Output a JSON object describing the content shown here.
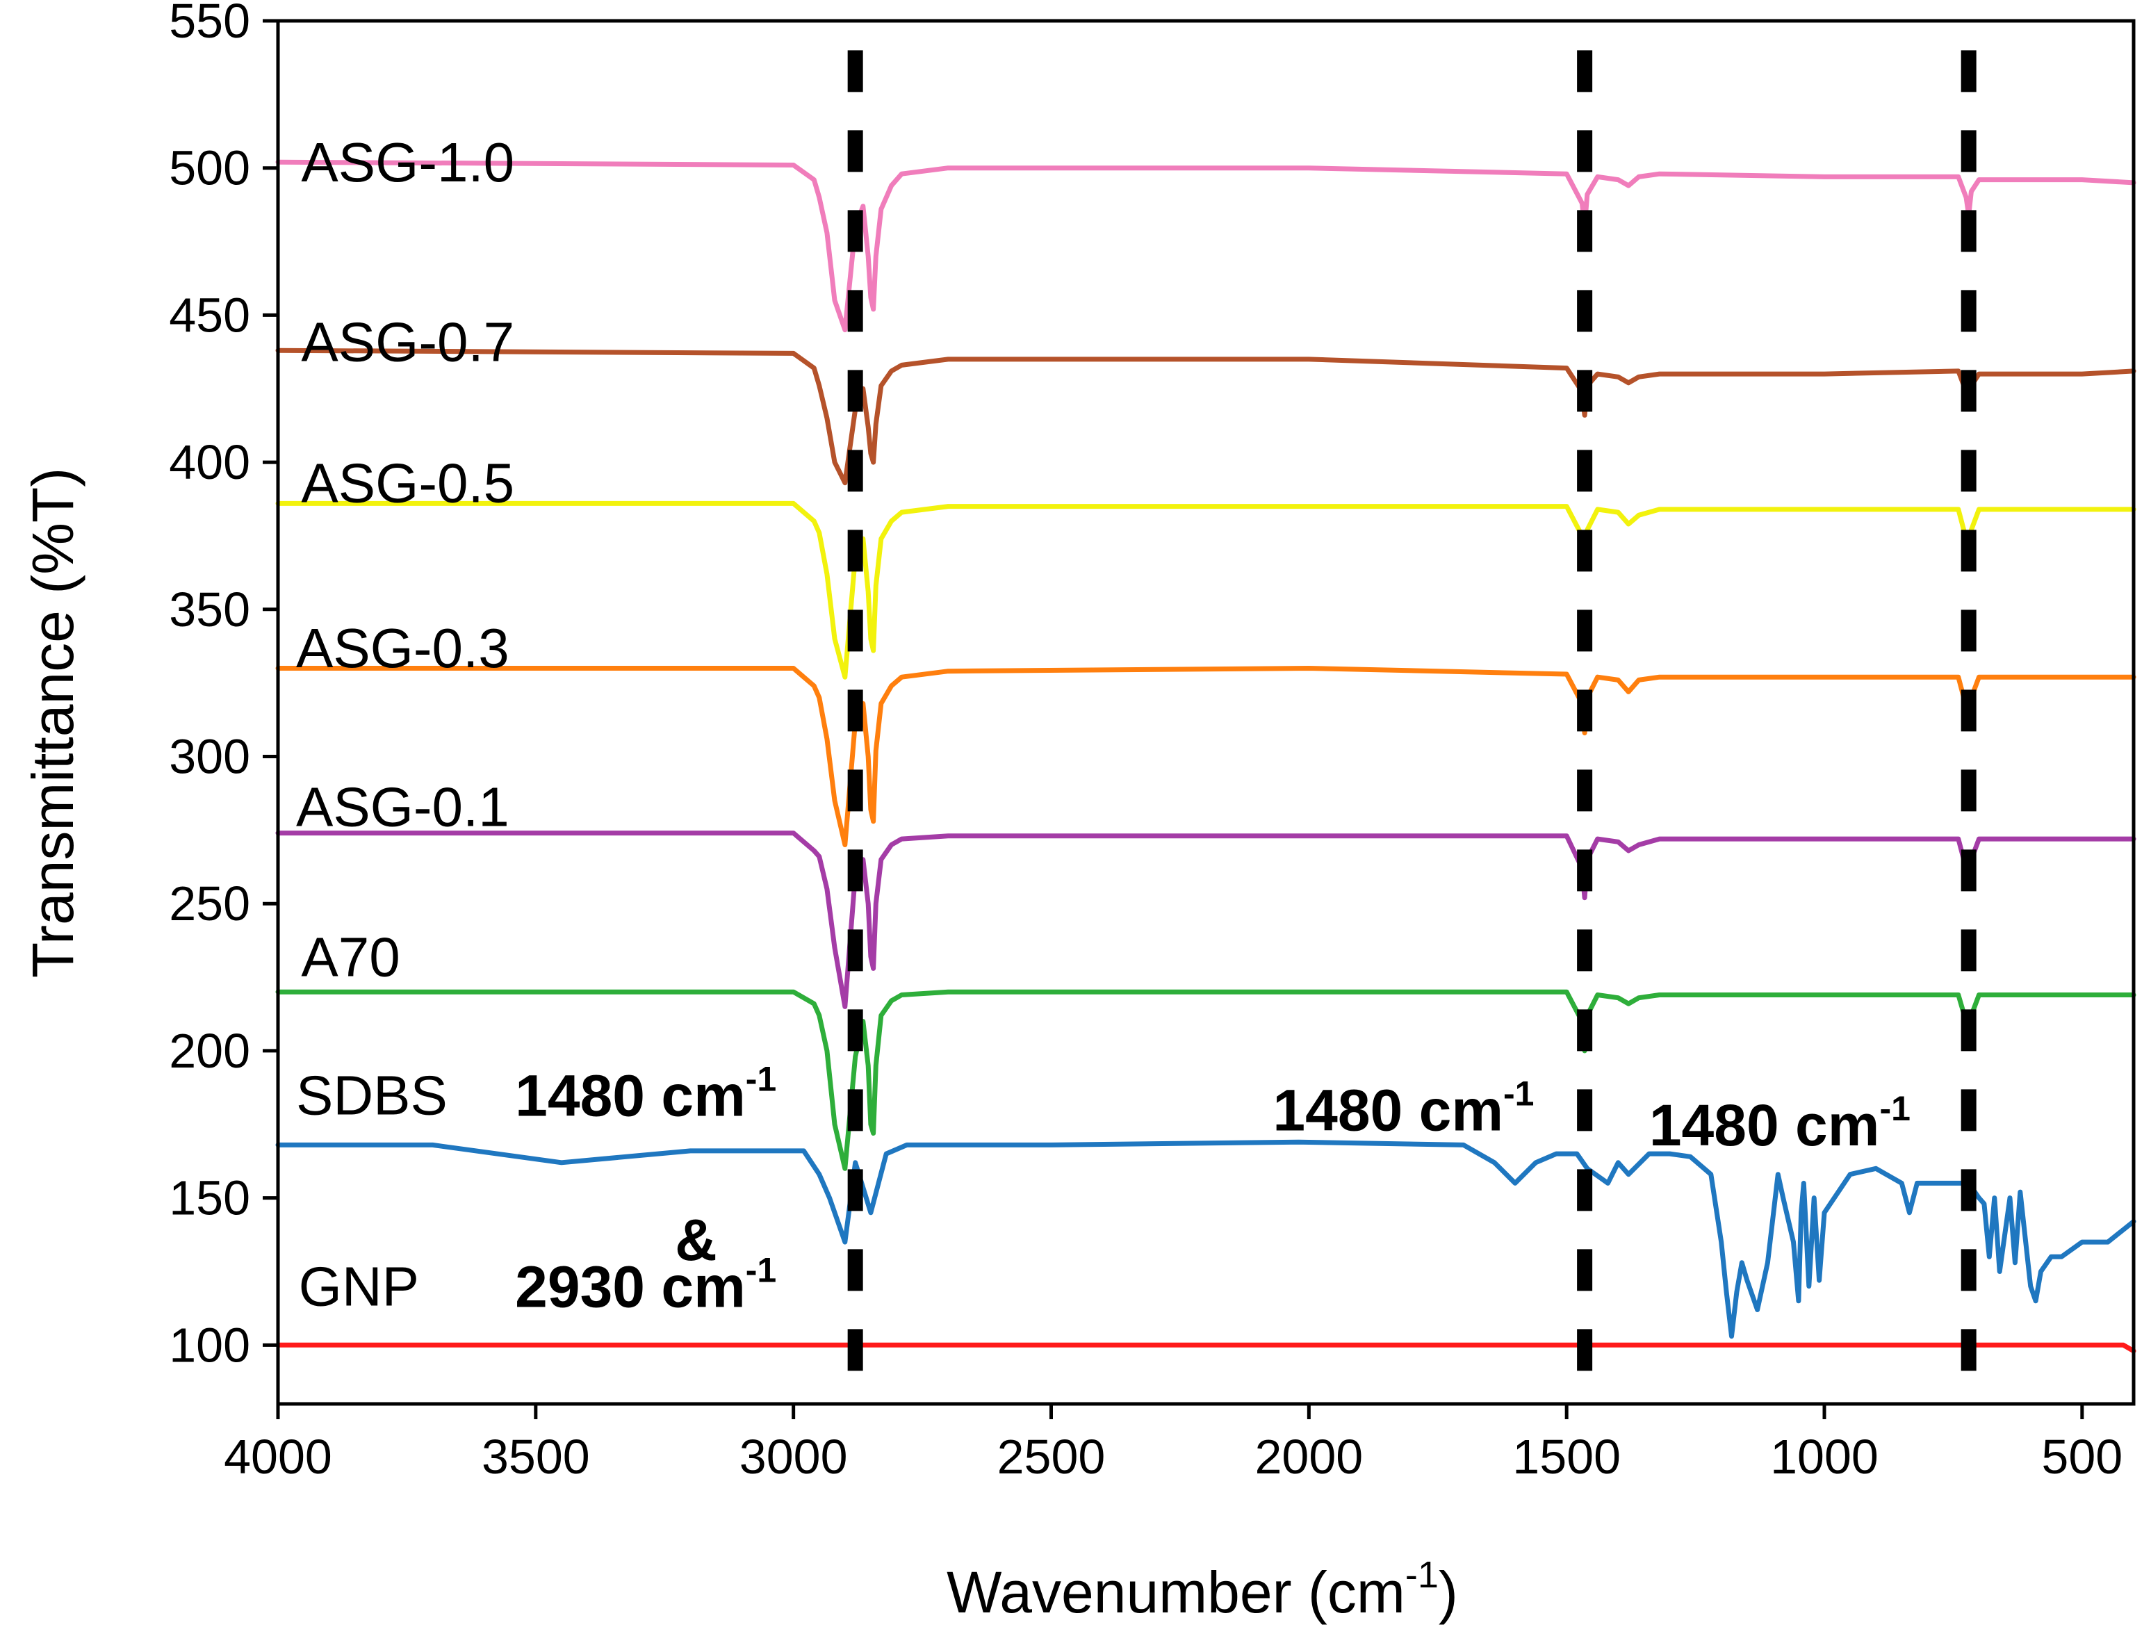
{
  "chart_data": {
    "type": "line",
    "title": "",
    "xlabel": "Wavenumber (cm",
    "xlabel_sup": "-1",
    "xlabel_tail": ")",
    "ylabel": "Transmittance (%T)",
    "xlim": [
      4000,
      400
    ],
    "ylim": [
      80,
      550
    ],
    "xticks": [
      4000,
      3500,
      3000,
      2500,
      2000,
      1500,
      1000,
      500
    ],
    "yticks": [
      100,
      150,
      200,
      250,
      300,
      350,
      400,
      450,
      500,
      550
    ],
    "marker_lines_x": [
      2880,
      1465,
      720
    ],
    "series": [
      {
        "name": "GNP",
        "color": "#ff1a1a",
        "x": [
          4000,
          3000,
          2000,
          1000,
          500,
          420,
          400
        ],
        "values": [
          100,
          100,
          100,
          100,
          100,
          100,
          98
        ]
      },
      {
        "name": "SDBS",
        "color": "#1f77c0",
        "x": [
          4000,
          3700,
          3450,
          3200,
          2980,
          2950,
          2930,
          2900,
          2880,
          2850,
          2820,
          2780,
          2500,
          2020,
          1700,
          1640,
          1600,
          1560,
          1520,
          1480,
          1460,
          1420,
          1400,
          1380,
          1340,
          1300,
          1260,
          1220,
          1200,
          1190,
          1180,
          1170,
          1160,
          1150,
          1130,
          1110,
          1090,
          1080,
          1060,
          1050,
          1045,
          1040,
          1030,
          1020,
          1010,
          1000,
          950,
          900,
          850,
          835,
          820,
          760,
          720,
          700,
          690,
          680,
          670,
          660,
          640,
          630,
          620,
          600,
          590,
          580,
          560,
          540,
          500,
          450,
          400
        ],
        "values": [
          168,
          168,
          162,
          166,
          166,
          158,
          150,
          135,
          162,
          145,
          165,
          168,
          168,
          169,
          168,
          162,
          155,
          162,
          165,
          165,
          160,
          155,
          162,
          158,
          165,
          165,
          164,
          158,
          135,
          118,
          103,
          118,
          128,
          122,
          112,
          128,
          158,
          150,
          135,
          115,
          145,
          155,
          120,
          150,
          122,
          145,
          158,
          160,
          155,
          145,
          155,
          155,
          155,
          150,
          148,
          130,
          150,
          125,
          150,
          128,
          152,
          120,
          115,
          125,
          130,
          130,
          135,
          135,
          142
        ]
      },
      {
        "name": "A70",
        "color": "#2eae3a",
        "x": [
          4000,
          3000,
          2960,
          2950,
          2935,
          2920,
          2900,
          2880,
          2865,
          2855,
          2850,
          2845,
          2840,
          2830,
          2810,
          2790,
          2700,
          2000,
          1500,
          1470,
          1465,
          1460,
          1440,
          1400,
          1380,
          1360,
          1320,
          1000,
          740,
          725,
          720,
          715,
          700,
          500,
          400
        ],
        "values": [
          220,
          220,
          216,
          212,
          200,
          175,
          160,
          198,
          210,
          195,
          175,
          172,
          195,
          212,
          217,
          219,
          220,
          220,
          220,
          210,
          200,
          212,
          219,
          218,
          216,
          218,
          219,
          219,
          219,
          210,
          205,
          212,
          219,
          219,
          219
        ]
      },
      {
        "name": "ASG-0.1",
        "color": "#a43ca6",
        "x": [
          4000,
          3000,
          2960,
          2950,
          2935,
          2920,
          2900,
          2880,
          2865,
          2855,
          2850,
          2845,
          2840,
          2830,
          2810,
          2790,
          2700,
          2000,
          1500,
          1470,
          1465,
          1460,
          1440,
          1400,
          1380,
          1360,
          1320,
          1000,
          740,
          725,
          720,
          715,
          700,
          500,
          400
        ],
        "values": [
          274,
          274,
          268,
          266,
          255,
          235,
          215,
          260,
          265,
          250,
          232,
          228,
          250,
          265,
          270,
          272,
          273,
          273,
          273,
          262,
          252,
          265,
          272,
          271,
          268,
          270,
          272,
          272,
          272,
          262,
          257,
          265,
          272,
          272,
          272
        ]
      },
      {
        "name": "ASG-0.3",
        "color": "#ff7f0e",
        "x": [
          4000,
          3000,
          2960,
          2950,
          2935,
          2920,
          2900,
          2880,
          2865,
          2855,
          2850,
          2845,
          2840,
          2830,
          2810,
          2790,
          2700,
          2000,
          1500,
          1470,
          1465,
          1460,
          1440,
          1400,
          1380,
          1360,
          1320,
          1000,
          740,
          725,
          720,
          715,
          700,
          500,
          400
        ],
        "values": [
          330,
          330,
          324,
          320,
          306,
          285,
          270,
          312,
          318,
          300,
          282,
          278,
          302,
          318,
          324,
          327,
          329,
          330,
          328,
          318,
          308,
          320,
          327,
          326,
          322,
          326,
          327,
          327,
          327,
          317,
          312,
          320,
          327,
          327,
          327
        ]
      },
      {
        "name": "ASG-0.5",
        "color": "#f2f20d",
        "x": [
          4000,
          3000,
          2960,
          2950,
          2935,
          2920,
          2900,
          2880,
          2865,
          2855,
          2850,
          2845,
          2840,
          2830,
          2810,
          2790,
          2700,
          2000,
          1500,
          1470,
          1465,
          1460,
          1440,
          1400,
          1380,
          1360,
          1320,
          1000,
          740,
          725,
          720,
          715,
          700,
          500,
          400
        ],
        "values": [
          386,
          386,
          380,
          376,
          362,
          340,
          327,
          368,
          374,
          356,
          340,
          336,
          358,
          374,
          380,
          383,
          385,
          385,
          385,
          375,
          365,
          377,
          384,
          383,
          379,
          382,
          384,
          384,
          384,
          374,
          367,
          377,
          384,
          384,
          384
        ]
      },
      {
        "name": "ASG-0.7",
        "color": "#b5522a",
        "x": [
          4000,
          3000,
          2960,
          2950,
          2935,
          2920,
          2900,
          2880,
          2865,
          2855,
          2850,
          2845,
          2840,
          2830,
          2810,
          2790,
          2700,
          2000,
          1500,
          1470,
          1465,
          1460,
          1440,
          1400,
          1380,
          1360,
          1320,
          1000,
          740,
          725,
          720,
          715,
          700,
          500,
          400
        ],
        "values": [
          438,
          437,
          432,
          426,
          415,
          400,
          393,
          418,
          425,
          412,
          403,
          400,
          413,
          426,
          431,
          433,
          435,
          435,
          432,
          424,
          416,
          426,
          430,
          429,
          427,
          429,
          430,
          430,
          431,
          424,
          419,
          426,
          430,
          430,
          431
        ]
      },
      {
        "name": "ASG-1.0",
        "color": "#f07dbb",
        "x": [
          4000,
          3000,
          2960,
          2950,
          2935,
          2920,
          2900,
          2880,
          2865,
          2855,
          2850,
          2845,
          2840,
          2830,
          2810,
          2790,
          2700,
          2000,
          1500,
          1470,
          1465,
          1460,
          1440,
          1400,
          1380,
          1360,
          1320,
          1000,
          740,
          725,
          720,
          715,
          700,
          500,
          400
        ],
        "values": [
          502,
          501,
          496,
          490,
          478,
          455,
          445,
          480,
          487,
          470,
          456,
          452,
          470,
          486,
          494,
          498,
          500,
          500,
          498,
          488,
          480,
          491,
          497,
          496,
          494,
          497,
          498,
          497,
          497,
          490,
          484,
          492,
          496,
          496,
          495
        ]
      }
    ],
    "series_labels": [
      {
        "text": "GNP",
        "x": 3960,
        "y": 120
      },
      {
        "text": "SDBS",
        "x": 3965,
        "y": 185
      },
      {
        "text": "A70",
        "x": 3955,
        "y": 232
      },
      {
        "text": "ASG-0.1",
        "x": 3965,
        "y": 283
      },
      {
        "text": "ASG-0.3",
        "x": 3965,
        "y": 337
      },
      {
        "text": "ASG-0.5",
        "x": 3955,
        "y": 393
      },
      {
        "text": "ASG-0.7",
        "x": 3955,
        "y": 441
      },
      {
        "text": "ASG-1.0",
        "x": 3955,
        "y": 502
      }
    ],
    "annotations": [
      {
        "text": "1480 cm",
        "sup": "-1",
        "x": 3540,
        "y": 185
      },
      {
        "text": "&",
        "sup": "",
        "x": 3230,
        "y": 136
      },
      {
        "text": "2930 cm",
        "sup": "-1",
        "x": 3540,
        "y": 120
      },
      {
        "text": "1480 cm",
        "sup": "-1",
        "x": 2070,
        "y": 180
      },
      {
        "text": "1480 cm",
        "sup": "-1",
        "x": 1340,
        "y": 175
      }
    ]
  }
}
